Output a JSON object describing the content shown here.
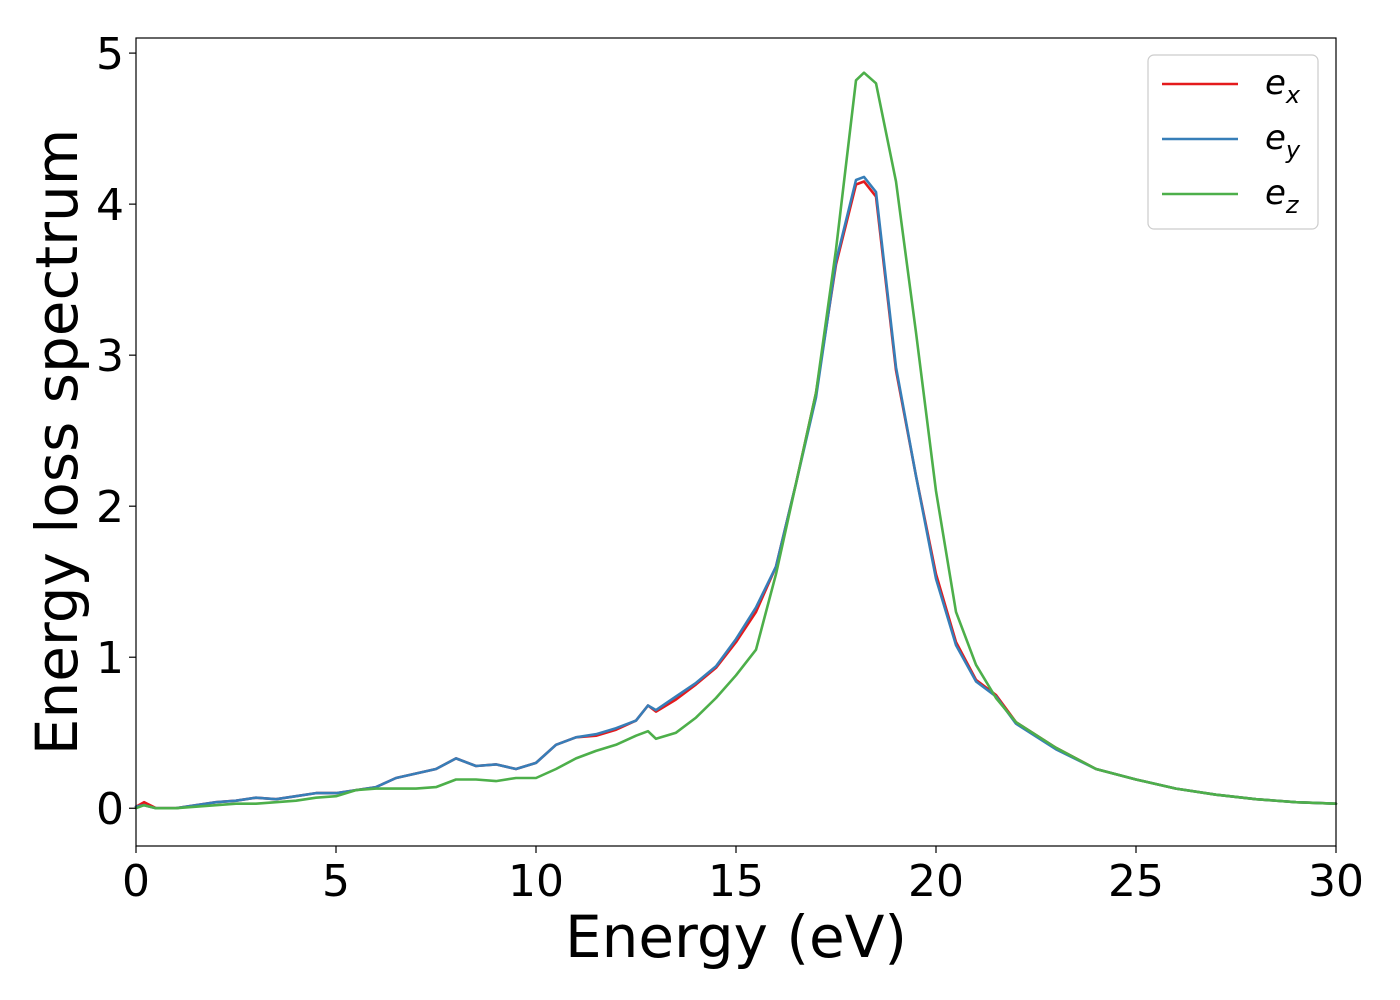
{
  "chart_data": {
    "type": "line",
    "title": "",
    "xlabel": "Energy (eV)",
    "ylabel": "Energy loss spectrum",
    "xlim": [
      0,
      30
    ],
    "ylim": [
      -0.25,
      5.1
    ],
    "xticks": [
      0,
      5,
      10,
      15,
      20,
      25,
      30
    ],
    "yticks": [
      0,
      1,
      2,
      3,
      4,
      5
    ],
    "grid": false,
    "legend_position": "top-right",
    "series": [
      {
        "name": "e_x",
        "label_base": "e",
        "label_sub": "x",
        "color": "#e41a1c",
        "x": [
          0,
          0.2,
          0.5,
          1,
          1.5,
          2,
          2.5,
          3,
          3.5,
          4,
          4.5,
          5,
          5.5,
          6,
          6.5,
          7,
          7.5,
          8,
          8.5,
          9,
          9.5,
          10,
          10.5,
          11,
          11.5,
          12,
          12.5,
          12.8,
          13,
          13.5,
          14,
          14.5,
          15,
          15.5,
          16,
          16.5,
          17,
          17.5,
          18,
          18.2,
          18.5,
          19,
          19.5,
          20,
          20.5,
          21,
          21.5,
          22,
          23,
          24,
          25,
          26,
          27,
          28,
          29,
          30
        ],
        "y": [
          0.01,
          0.04,
          0.0,
          0.0,
          0.02,
          0.04,
          0.05,
          0.07,
          0.06,
          0.08,
          0.1,
          0.1,
          0.12,
          0.14,
          0.2,
          0.23,
          0.26,
          0.33,
          0.28,
          0.29,
          0.26,
          0.3,
          0.42,
          0.47,
          0.48,
          0.52,
          0.58,
          0.68,
          0.64,
          0.72,
          0.82,
          0.93,
          1.1,
          1.3,
          1.6,
          2.15,
          2.75,
          3.6,
          4.13,
          4.15,
          4.05,
          2.9,
          2.2,
          1.55,
          1.1,
          0.85,
          0.75,
          0.57,
          0.4,
          0.26,
          0.19,
          0.13,
          0.09,
          0.06,
          0.04,
          0.03
        ]
      },
      {
        "name": "e_y",
        "label_base": "e",
        "label_sub": "y",
        "color": "#377eb8",
        "x": [
          0,
          0.2,
          0.5,
          1,
          1.5,
          2,
          2.5,
          3,
          3.5,
          4,
          4.5,
          5,
          5.5,
          6,
          6.5,
          7,
          7.5,
          8,
          8.5,
          9,
          9.5,
          10,
          10.5,
          11,
          11.5,
          12,
          12.5,
          12.8,
          13,
          13.5,
          14,
          14.5,
          15,
          15.5,
          16,
          16.5,
          17,
          17.5,
          18,
          18.2,
          18.5,
          19,
          19.5,
          20,
          20.5,
          21,
          21.5,
          22,
          23,
          24,
          25,
          26,
          27,
          28,
          29,
          30
        ],
        "y": [
          0.01,
          0.02,
          0.0,
          0.0,
          0.02,
          0.04,
          0.05,
          0.07,
          0.06,
          0.08,
          0.1,
          0.1,
          0.12,
          0.14,
          0.2,
          0.23,
          0.26,
          0.33,
          0.28,
          0.29,
          0.26,
          0.3,
          0.42,
          0.47,
          0.49,
          0.53,
          0.58,
          0.68,
          0.65,
          0.74,
          0.83,
          0.94,
          1.12,
          1.33,
          1.6,
          2.15,
          2.72,
          3.62,
          4.16,
          4.18,
          4.08,
          2.92,
          2.2,
          1.52,
          1.08,
          0.84,
          0.74,
          0.56,
          0.39,
          0.26,
          0.19,
          0.13,
          0.09,
          0.06,
          0.04,
          0.03
        ]
      },
      {
        "name": "e_z",
        "label_base": "e",
        "label_sub": "z",
        "color": "#4daf4a",
        "x": [
          0,
          0.2,
          0.5,
          1,
          1.5,
          2,
          2.5,
          3,
          3.5,
          4,
          4.5,
          5,
          5.5,
          6,
          6.5,
          7,
          7.5,
          8,
          8.5,
          9,
          9.5,
          10,
          10.5,
          11,
          11.5,
          12,
          12.5,
          12.8,
          13,
          13.5,
          14,
          14.5,
          15,
          15.5,
          16,
          16.5,
          17,
          17.5,
          18,
          18.2,
          18.5,
          19,
          19.5,
          20,
          20.5,
          21,
          21.5,
          22,
          23,
          24,
          25,
          26,
          27,
          28,
          29,
          30
        ],
        "y": [
          0.0,
          0.02,
          0.0,
          0.0,
          0.01,
          0.02,
          0.03,
          0.03,
          0.04,
          0.05,
          0.07,
          0.08,
          0.12,
          0.13,
          0.13,
          0.13,
          0.14,
          0.19,
          0.19,
          0.18,
          0.2,
          0.2,
          0.26,
          0.33,
          0.38,
          0.42,
          0.48,
          0.51,
          0.46,
          0.5,
          0.6,
          0.73,
          0.88,
          1.05,
          1.55,
          2.15,
          2.75,
          3.7,
          4.82,
          4.87,
          4.8,
          4.15,
          3.15,
          2.1,
          1.3,
          0.95,
          0.73,
          0.57,
          0.4,
          0.26,
          0.19,
          0.13,
          0.09,
          0.06,
          0.04,
          0.03
        ]
      }
    ]
  }
}
